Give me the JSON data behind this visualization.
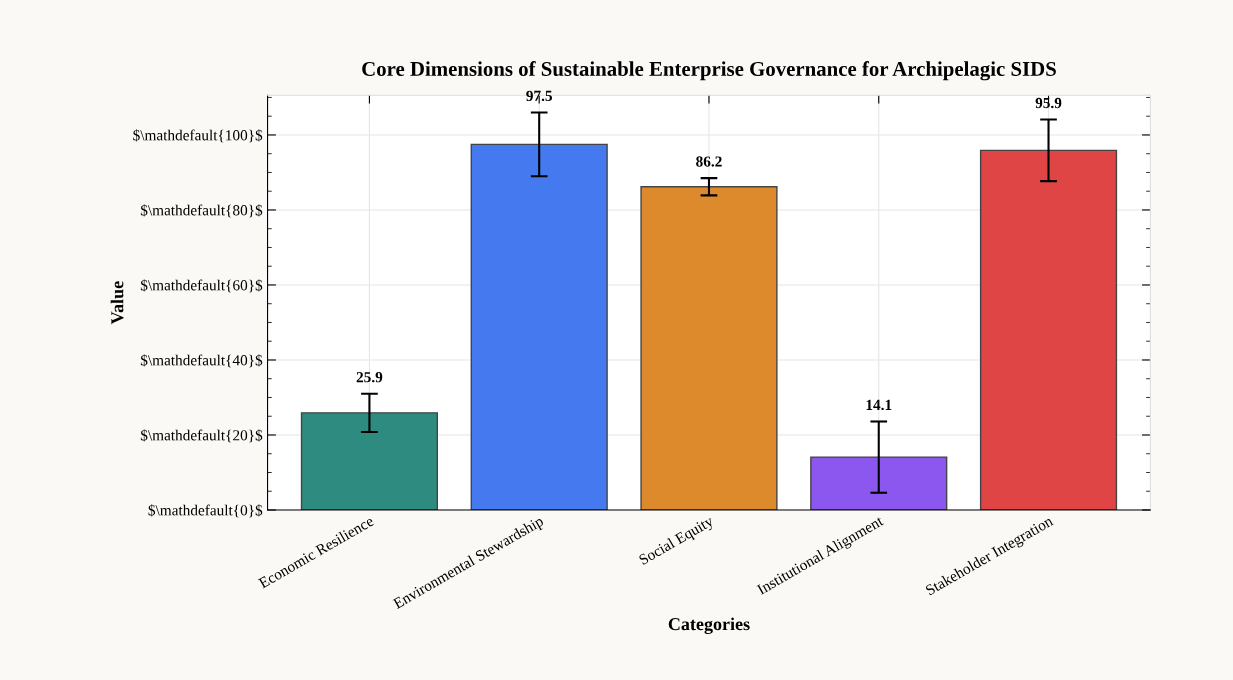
{
  "chart_data": {
    "type": "bar",
    "title": "Core Dimensions of Sustainable Enterprise Governance for Archipelagic SIDS",
    "xlabel": "Categories",
    "ylabel": "Value",
    "categories": [
      "Economic Resilience",
      "Environmental Stewardship",
      "Social Equity",
      "Institutional Alignment",
      "Stakeholder Integration"
    ],
    "values": [
      25.9,
      97.5,
      86.2,
      14.1,
      95.9
    ],
    "errors": [
      5.1,
      8.5,
      2.3,
      9.5,
      8.2
    ],
    "colors": [
      "#2e8b80",
      "#4479ef",
      "#dd8a2c",
      "#8b57ef",
      "#df4545"
    ],
    "ylim": [
      0,
      110.6
    ],
    "yticks": [
      {
        "value": 0,
        "label": "$\\mathdefault{0}$"
      },
      {
        "value": 20,
        "label": "$\\mathdefault{20}$"
      },
      {
        "value": 40,
        "label": "$\\mathdefault{40}$"
      },
      {
        "value": 60,
        "label": "$\\mathdefault{60}$"
      },
      {
        "value": 80,
        "label": "$\\mathdefault{80}$"
      },
      {
        "value": 100,
        "label": "$\\mathdefault{100}$"
      }
    ],
    "data_labels": true,
    "grid": true
  }
}
